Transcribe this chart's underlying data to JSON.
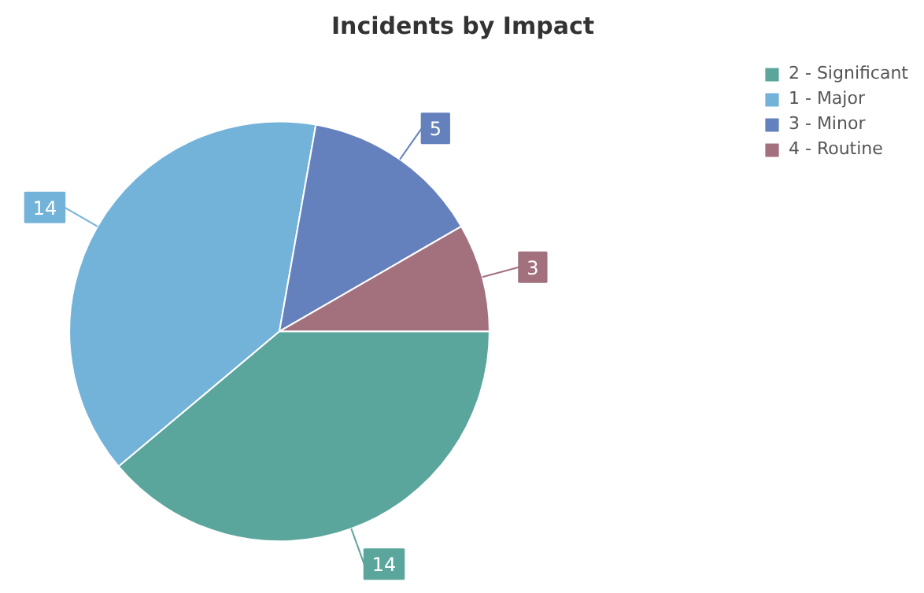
{
  "chart_data": {
    "type": "pie",
    "title": "Incidents by Impact",
    "categories": [
      "2 - Significant",
      "1 - Major",
      "3 - Minor",
      "4 - Routine"
    ],
    "values": [
      14,
      14,
      5,
      3
    ],
    "colors": [
      "#5ba69c",
      "#74b3d9",
      "#6581bd",
      "#a3707e"
    ],
    "data_labels": true,
    "legend": "top right"
  }
}
